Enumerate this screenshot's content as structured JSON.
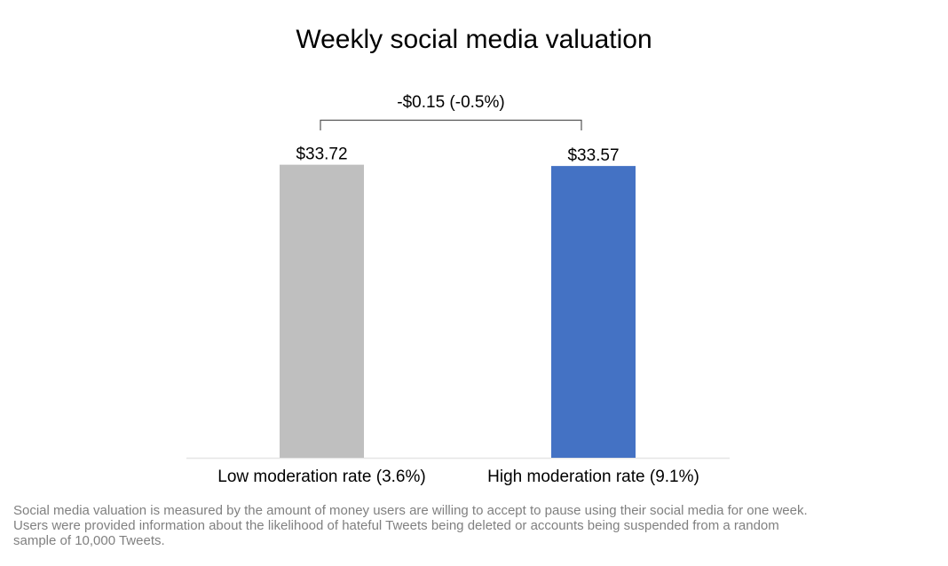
{
  "chart_data": {
    "type": "bar",
    "title": "Weekly social media valuation",
    "categories": [
      "Low moderation rate (3.6%)",
      "High moderation rate (9.1%)"
    ],
    "values": [
      33.72,
      33.57
    ],
    "data_labels": [
      "$33.72",
      "$33.57"
    ],
    "colors": [
      "#BFBFBF",
      "#4472C4"
    ],
    "ylim": [
      0,
      34.5
    ],
    "grid": false,
    "legend": "none",
    "annotation": "-$0.15 (-0.5%)",
    "xlabel": "",
    "ylabel": ""
  },
  "footnote": [
    "Social media valuation is measured by the amount of money users are willing to accept to pause using their social media for one week.",
    "Users were provided information about the likelihood of hateful Tweets being deleted or accounts being suspended from a random",
    "sample of 10,000 Tweets."
  ]
}
